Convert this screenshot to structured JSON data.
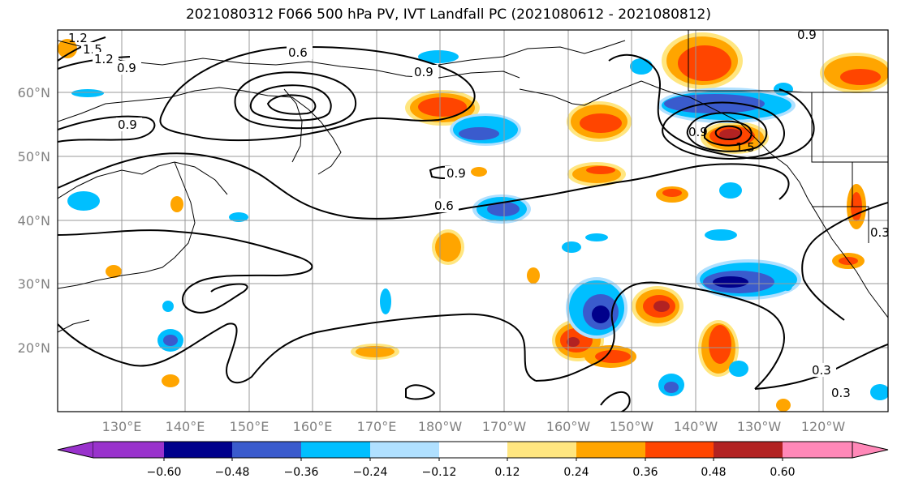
{
  "title": "2021080312 F066 500 hPa PV, IVT Landfall PC (2021080612 - 2021080812)",
  "lat_labels": [
    "60°N",
    "50°N",
    "40°N",
    "30°N",
    "20°N"
  ],
  "lon_labels": [
    "130°E",
    "140°E",
    "150°E",
    "160°E",
    "170°E",
    "180°W",
    "170°W",
    "160°W",
    "150°W",
    "140°W",
    "130°W",
    "120°W"
  ],
  "contour_labels": {
    "c1": "0.6",
    "c2": "0.9",
    "c3": "0.9",
    "c4": "0.9",
    "c5": "0.9",
    "c6": "0.6",
    "c7": "0.9",
    "c8": "1.5",
    "c9": "1.2",
    "c10": "0.9",
    "c11": "0.3",
    "c12": "0.3",
    "c13": "0.3",
    "c14": "1.5",
    "c15": "0.9",
    "c16": "1.2"
  },
  "colorbar": {
    "ticks": [
      "−0.60",
      "−0.48",
      "−0.36",
      "−0.24",
      "−0.12",
      "0.12",
      "0.24",
      "0.36",
      "0.48",
      "0.60"
    ],
    "colors": [
      "#9932cc",
      "#00008b",
      "#3a5bcd",
      "#00bfff",
      "#b0e0ff",
      "#ffffff",
      "#ffe680",
      "#ffa500",
      "#ff4500",
      "#b22222",
      "#ff88b8"
    ]
  },
  "palette": {
    "neg_strong": "#00008b",
    "neg_mid": "#3a5bcd",
    "neg_light": "#00bfff",
    "neg_pale": "#b0e0ff",
    "pos_pale": "#ffe680",
    "pos_mid": "#ffa500",
    "pos_strong": "#ff4500",
    "pos_dark": "#b22222"
  }
}
